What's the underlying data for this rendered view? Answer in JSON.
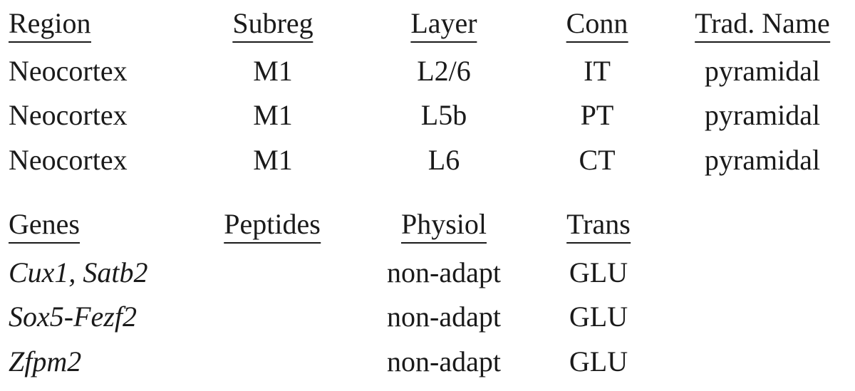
{
  "table1": {
    "columns": [
      "Region",
      "Subreg",
      "Layer",
      "Conn",
      "Trad. Name"
    ],
    "rows": [
      [
        "Neocortex",
        "M1",
        "L2/6",
        "IT",
        "pyramidal"
      ],
      [
        "Neocortex",
        "M1",
        "L5b",
        "PT",
        "pyramidal"
      ],
      [
        "Neocortex",
        "M1",
        "L6",
        "CT",
        "pyramidal"
      ]
    ]
  },
  "table2": {
    "columns": [
      "Genes",
      "Peptides",
      "Physiol",
      "Trans"
    ],
    "rows": [
      [
        "Cux1, Satb2",
        null,
        "non-adapt",
        "GLU"
      ],
      [
        "Sox5-Fezf2",
        null,
        "non-adapt",
        "GLU"
      ],
      [
        "Zfpm2",
        null,
        "non-adapt",
        "GLU"
      ]
    ]
  }
}
